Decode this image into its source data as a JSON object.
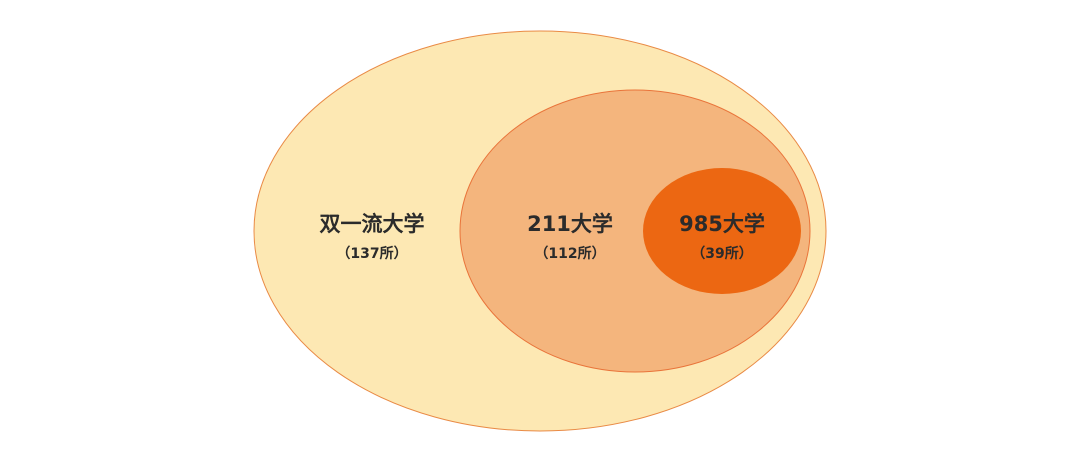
{
  "colors": {
    "outer_fill": "#fde8b3",
    "middle_fill": "#f4b57d",
    "inner_fill": "#ec6712",
    "stroke": "#e98a45"
  },
  "sets": [
    {
      "label": "双一流大学",
      "count": "（137所）"
    },
    {
      "label": "211大学",
      "count": "（112所）"
    },
    {
      "label": "985大学",
      "count": "（39所）"
    }
  ]
}
